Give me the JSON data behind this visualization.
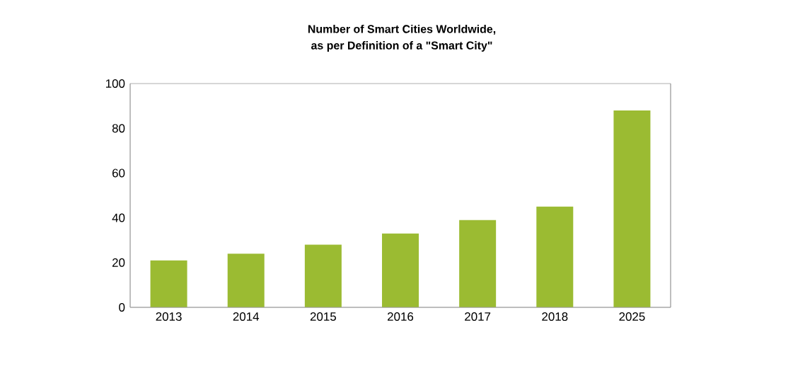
{
  "chart_data": {
    "type": "bar",
    "title": "Number of Smart Cities Worldwide,",
    "subtitle": "as per Definition of a \"Smart City\"",
    "categories": [
      "2013",
      "2014",
      "2015",
      "2016",
      "2017",
      "2018",
      "2025"
    ],
    "values": [
      21,
      24,
      28,
      33,
      39,
      45,
      88
    ],
    "color": "#9bbb32",
    "ylim": [
      0,
      100
    ],
    "yticks": [
      0,
      20,
      40,
      60,
      80,
      100
    ],
    "grid": false
  }
}
